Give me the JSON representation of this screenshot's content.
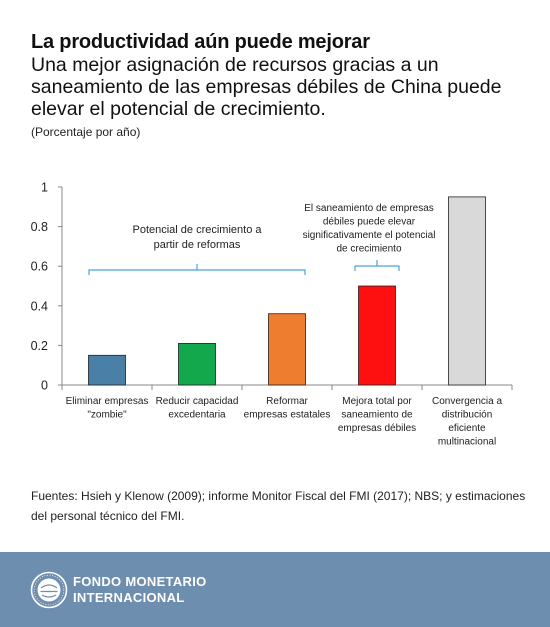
{
  "header": {
    "title": "La productividad aún puede mejorar",
    "subtitle": "Una mejor asignación de recursos gracias a un saneamiento de las empresas débiles de China puede elevar el potencial de crecimiento.",
    "unit": "(Porcentaje por año)"
  },
  "chart_data": {
    "type": "bar",
    "categories": [
      [
        "Eliminar empresas",
        "\"zombie\""
      ],
      [
        "Reducir capacidad",
        "excedentaria"
      ],
      [
        "Reformar",
        "empresas estatales"
      ],
      [
        "Mejora total por",
        "saneamiento de",
        "empresas débiles"
      ],
      [
        "Convergencia a",
        "distribución",
        "eficiente",
        "multinacional"
      ]
    ],
    "values": [
      0.15,
      0.21,
      0.36,
      0.5,
      0.95
    ],
    "colors": [
      "#4a7fa8",
      "#12a84b",
      "#ee7d30",
      "#ff1010",
      "#d9d9d9"
    ],
    "ylim": [
      0,
      1
    ],
    "yticks": [
      "0",
      "0.2",
      "0.4",
      "0.6",
      "0.8",
      "1"
    ],
    "grid": false,
    "annotations": [
      {
        "text": [
          "Potencial de crecimiento a",
          "partir de reformas"
        ],
        "span": [
          0,
          2
        ]
      },
      {
        "text": [
          "El saneamiento de empresas",
          "débiles puede elevar",
          "significativamente el potencial",
          "de crecimiento"
        ],
        "span": [
          3,
          3
        ]
      }
    ]
  },
  "footer": {
    "source": "Fuentes: Hsieh y Klenow (2009); informe Monitor Fiscal del FMI (2017); NBS; y estimaciones del personal técnico del FMI.",
    "org_line1": "FONDO MONETARIO",
    "org_line2": "INTERNACIONAL",
    "logo_color": "#6e8eaf"
  }
}
